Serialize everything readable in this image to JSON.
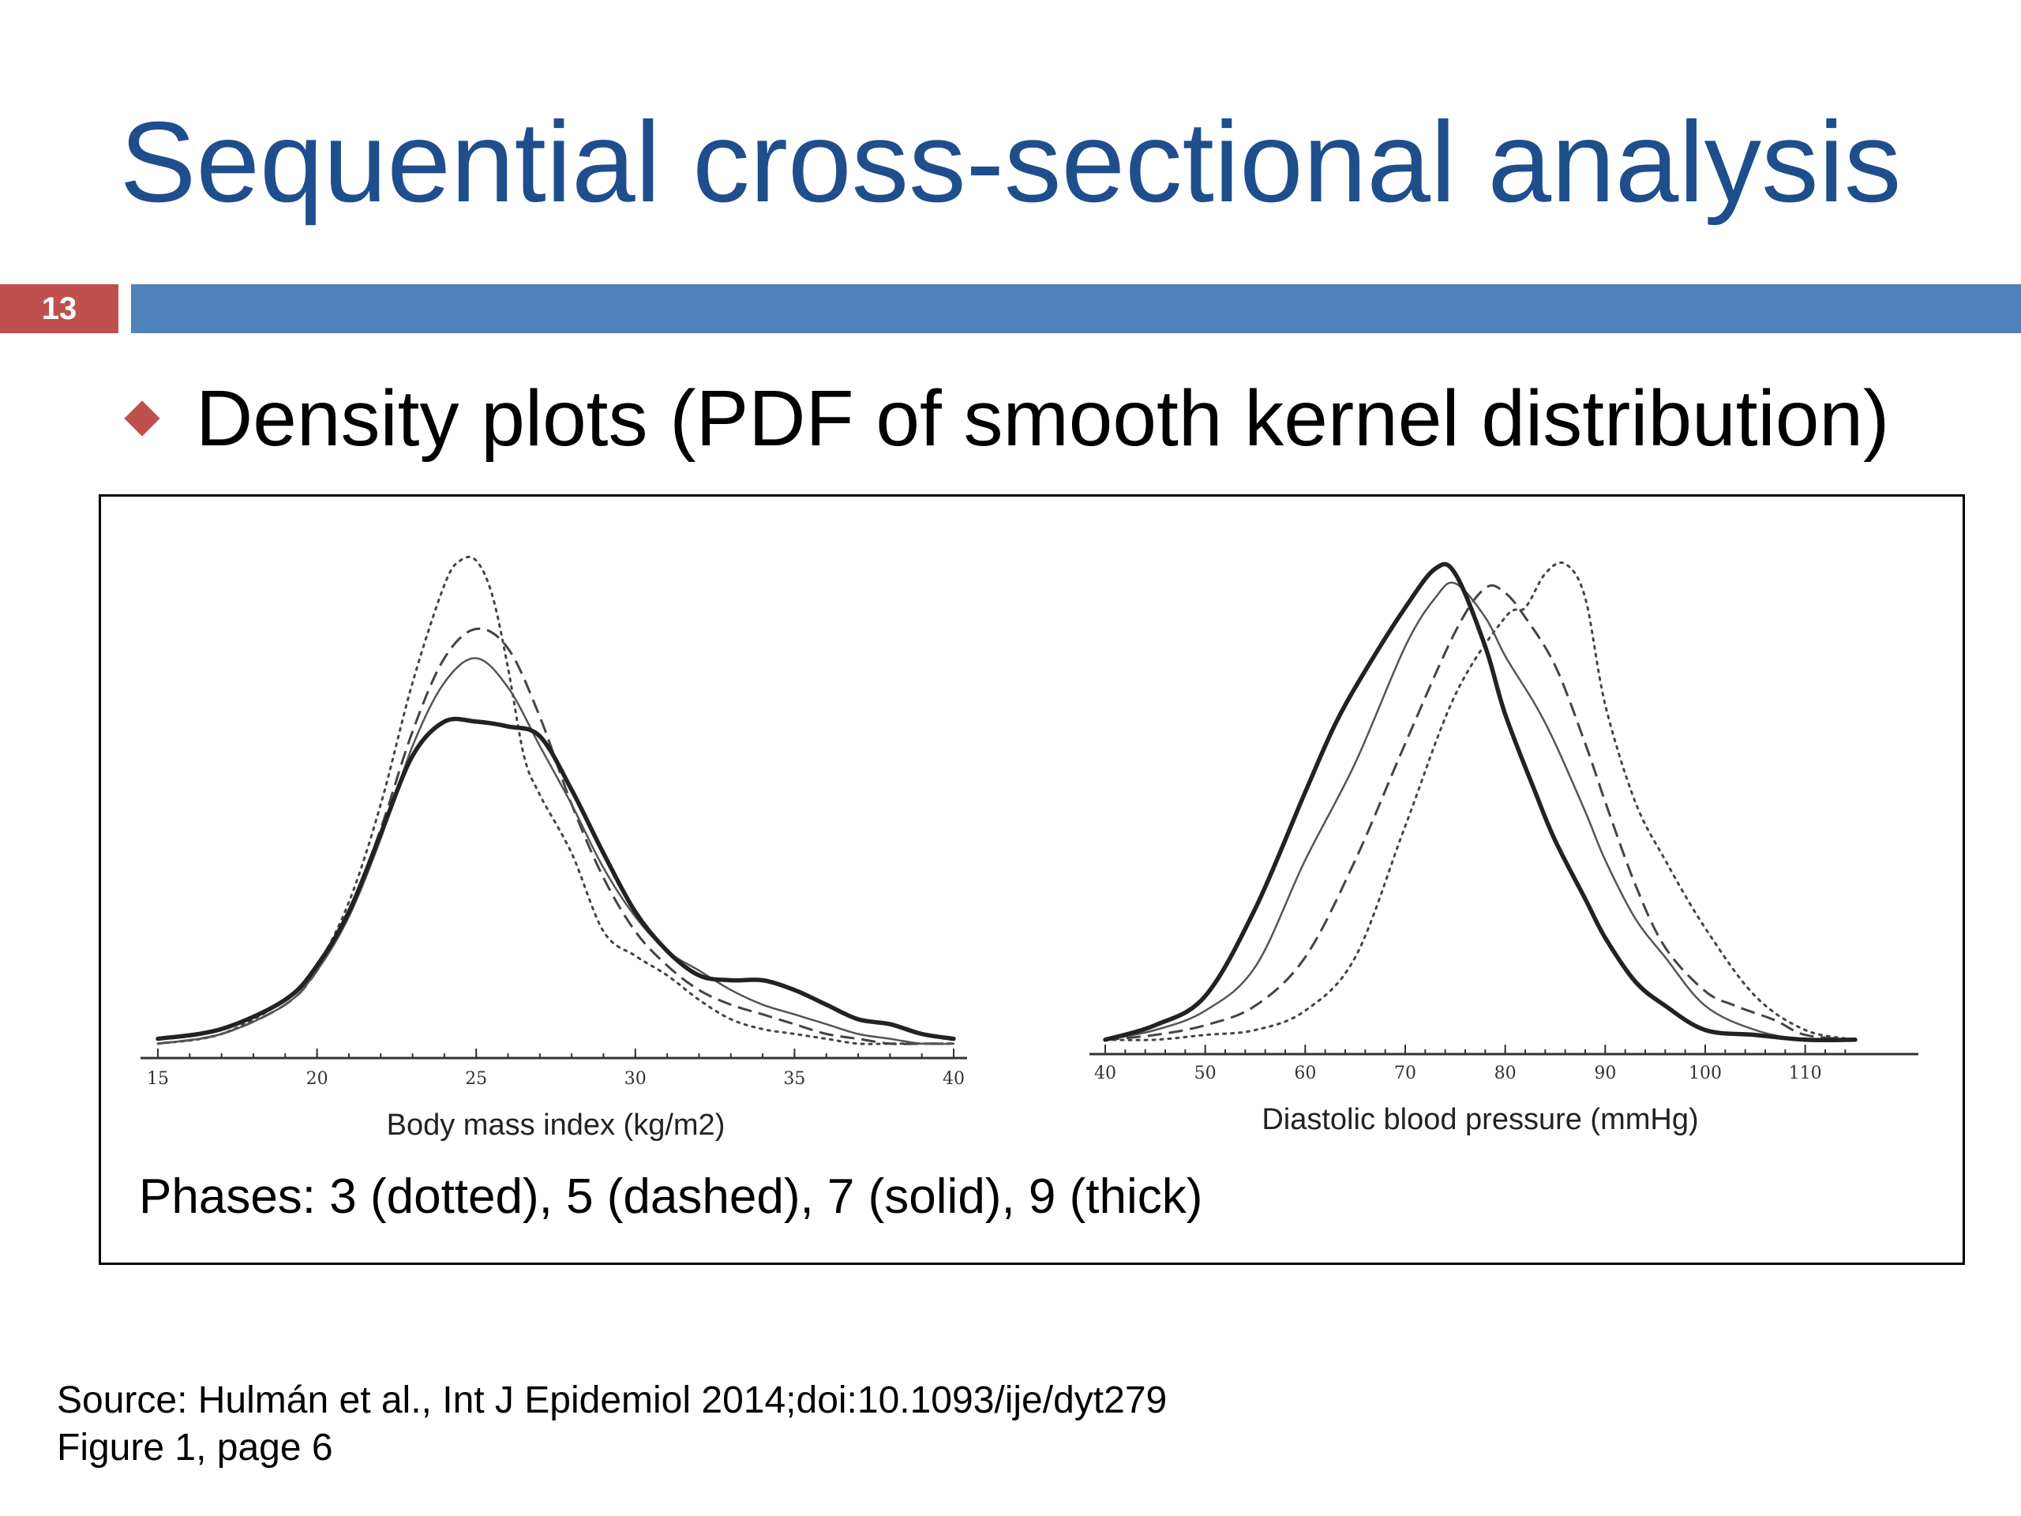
{
  "slide": {
    "title": "Sequential cross-sectional analysis",
    "number": "13",
    "bullet": "Density plots (PDF of smooth kernel distribution)",
    "caption": "Phases: 3 (dotted), 5 (dashed), 7 (solid), 9 (thick)",
    "source_line1": "Source: Hulmán et al., Int J Epidemiol 2014;doi:10.1093/ije/dyt279",
    "source_line2": "Figure 1, page 6",
    "colors": {
      "title": "#1f4e8c",
      "accent_red": "#c0504d",
      "accent_blue": "#4f81bd"
    }
  },
  "chart_data": [
    {
      "type": "line",
      "xlabel": "Body mass index (kg/m2)",
      "ylabel": "",
      "xlim": [
        15,
        40
      ],
      "xticks": [
        15,
        20,
        25,
        30,
        35,
        40
      ],
      "y_axis_shown": false,
      "y_units": "relative density",
      "series": [
        {
          "name": "3",
          "style": "dotted",
          "x": [
            15,
            17,
            19,
            20,
            21,
            22,
            23,
            24,
            24.5,
            25,
            25.5,
            26,
            26.5,
            27,
            28,
            29,
            30,
            31,
            32,
            33,
            34,
            35,
            36,
            37,
            38,
            39,
            40
          ],
          "y": [
            0.01,
            0.03,
            0.1,
            0.17,
            0.3,
            0.5,
            0.75,
            0.95,
            1.0,
            1.0,
            0.93,
            0.78,
            0.6,
            0.52,
            0.4,
            0.24,
            0.19,
            0.15,
            0.1,
            0.06,
            0.04,
            0.03,
            0.02,
            0.01,
            0.01,
            0.01,
            0.01
          ]
        },
        {
          "name": "5",
          "style": "dashed",
          "x": [
            15,
            17,
            19,
            20,
            21,
            22,
            23,
            24,
            25,
            26,
            27,
            28,
            29,
            30,
            31,
            32,
            33,
            34,
            35,
            36,
            37,
            38,
            39,
            40
          ],
          "y": [
            0.01,
            0.03,
            0.09,
            0.16,
            0.28,
            0.45,
            0.65,
            0.8,
            0.86,
            0.82,
            0.68,
            0.5,
            0.35,
            0.24,
            0.17,
            0.12,
            0.09,
            0.07,
            0.05,
            0.03,
            0.02,
            0.01,
            0.01,
            0.01
          ]
        },
        {
          "name": "7",
          "style": "solid",
          "x": [
            15,
            17,
            19,
            20,
            21,
            22,
            23,
            24,
            25,
            26,
            27,
            28,
            29,
            30,
            31,
            32,
            33,
            34,
            35,
            36,
            37,
            38,
            39,
            40
          ],
          "y": [
            0.01,
            0.03,
            0.09,
            0.16,
            0.27,
            0.43,
            0.62,
            0.75,
            0.8,
            0.74,
            0.62,
            0.5,
            0.37,
            0.27,
            0.2,
            0.16,
            0.12,
            0.09,
            0.07,
            0.05,
            0.03,
            0.02,
            0.01,
            0.01
          ]
        },
        {
          "name": "9",
          "style": "thick",
          "x": [
            15,
            17,
            19,
            20,
            21,
            22,
            23,
            24,
            25,
            26,
            27,
            28,
            29,
            30,
            31,
            32,
            33,
            34,
            35,
            36,
            37,
            38,
            39,
            40
          ],
          "y": [
            0.02,
            0.04,
            0.1,
            0.17,
            0.28,
            0.44,
            0.6,
            0.67,
            0.67,
            0.66,
            0.64,
            0.53,
            0.4,
            0.28,
            0.2,
            0.15,
            0.14,
            0.14,
            0.12,
            0.09,
            0.06,
            0.05,
            0.03,
            0.02
          ]
        }
      ]
    },
    {
      "type": "line",
      "xlabel": "Diastolic blood pressure (mmHg)",
      "ylabel": "",
      "xlim": [
        40,
        115
      ],
      "xticks": [
        40,
        50,
        60,
        70,
        80,
        90,
        100,
        110
      ],
      "y_axis_shown": false,
      "y_units": "relative density",
      "series": [
        {
          "name": "3",
          "style": "dotted",
          "x": [
            40,
            45,
            50,
            55,
            60,
            65,
            70,
            75,
            80,
            82,
            84,
            86,
            88,
            90,
            93,
            96,
            100,
            105,
            110,
            115
          ],
          "y": [
            0.01,
            0.01,
            0.02,
            0.03,
            0.07,
            0.18,
            0.45,
            0.72,
            0.88,
            0.9,
            0.97,
            0.99,
            0.92,
            0.7,
            0.5,
            0.38,
            0.24,
            0.1,
            0.03,
            0.01
          ]
        },
        {
          "name": "5",
          "style": "dashed",
          "x": [
            40,
            45,
            50,
            55,
            60,
            65,
            70,
            75,
            78,
            80,
            82,
            85,
            88,
            90,
            93,
            96,
            100,
            103,
            107,
            110,
            115
          ],
          "y": [
            0.01,
            0.02,
            0.04,
            0.08,
            0.18,
            0.38,
            0.62,
            0.85,
            0.94,
            0.93,
            0.88,
            0.78,
            0.62,
            0.5,
            0.33,
            0.2,
            0.11,
            0.08,
            0.05,
            0.02,
            0.01
          ]
        },
        {
          "name": "7",
          "style": "solid",
          "x": [
            40,
            45,
            50,
            55,
            60,
            65,
            70,
            73,
            75,
            78,
            80,
            83,
            85,
            88,
            90,
            93,
            96,
            100,
            105,
            110,
            115
          ],
          "y": [
            0.01,
            0.03,
            0.07,
            0.16,
            0.38,
            0.58,
            0.82,
            0.92,
            0.95,
            0.88,
            0.8,
            0.7,
            0.62,
            0.48,
            0.38,
            0.26,
            0.18,
            0.08,
            0.03,
            0.01,
            0.01
          ]
        },
        {
          "name": "9",
          "style": "thick",
          "x": [
            40,
            45,
            50,
            55,
            60,
            63,
            66,
            70,
            73,
            75,
            78,
            80,
            83,
            85,
            88,
            90,
            93,
            96,
            100,
            105,
            110,
            115
          ],
          "y": [
            0.01,
            0.04,
            0.1,
            0.28,
            0.52,
            0.66,
            0.77,
            0.9,
            0.98,
            0.97,
            0.82,
            0.68,
            0.52,
            0.42,
            0.3,
            0.22,
            0.13,
            0.08,
            0.03,
            0.02,
            0.01,
            0.01
          ]
        }
      ]
    }
  ]
}
